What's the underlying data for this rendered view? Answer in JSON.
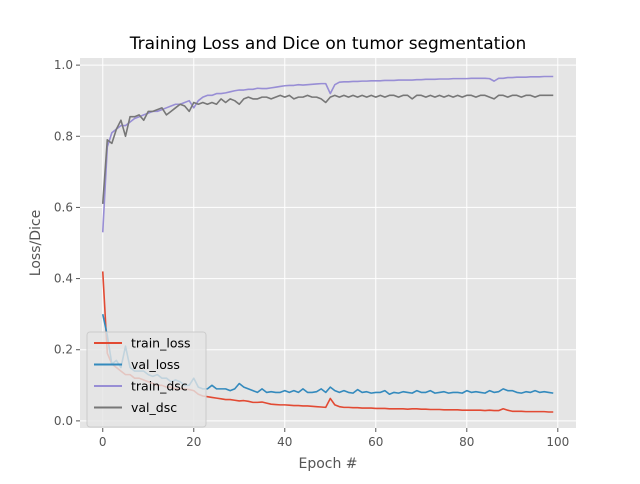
{
  "chart_data": {
    "type": "line",
    "title": "Training Loss and Dice on tumor segmentation",
    "xlabel": "Epoch #",
    "ylabel": "Loss/Dice",
    "xlim": [
      -5,
      104
    ],
    "ylim": [
      -0.02,
      1.02
    ],
    "xticks": [
      0,
      20,
      40,
      60,
      80,
      100
    ],
    "yticks": [
      0.0,
      0.2,
      0.4,
      0.6,
      0.8,
      1.0
    ],
    "xtick_labels": [
      "0",
      "20",
      "40",
      "60",
      "80",
      "100"
    ],
    "ytick_labels": [
      "0.0",
      "0.2",
      "0.4",
      "0.6",
      "0.8",
      "1.0"
    ],
    "grid": true,
    "style": "ggplot",
    "background_color": "#e5e5e5",
    "legend_position": "lower-left",
    "x": [
      0,
      1,
      2,
      3,
      4,
      5,
      6,
      7,
      8,
      9,
      10,
      11,
      12,
      13,
      14,
      15,
      16,
      17,
      18,
      19,
      20,
      21,
      22,
      23,
      24,
      25,
      26,
      27,
      28,
      29,
      30,
      31,
      32,
      33,
      34,
      35,
      36,
      37,
      38,
      39,
      40,
      41,
      42,
      43,
      44,
      45,
      46,
      47,
      48,
      49,
      50,
      51,
      52,
      53,
      54,
      55,
      56,
      57,
      58,
      59,
      60,
      61,
      62,
      63,
      64,
      65,
      66,
      67,
      68,
      69,
      70,
      71,
      72,
      73,
      74,
      75,
      76,
      77,
      78,
      79,
      80,
      81,
      82,
      83,
      84,
      85,
      86,
      87,
      88,
      89,
      90,
      91,
      92,
      93,
      94,
      95,
      96,
      97,
      98,
      99
    ],
    "series": [
      {
        "name": "train_loss",
        "color": "#e24a33",
        "values": [
          0.42,
          0.19,
          0.16,
          0.15,
          0.14,
          0.13,
          0.13,
          0.12,
          0.12,
          0.115,
          0.11,
          0.105,
          0.1,
          0.1,
          0.095,
          0.095,
          0.09,
          0.09,
          0.09,
          0.088,
          0.085,
          0.075,
          0.07,
          0.068,
          0.066,
          0.064,
          0.062,
          0.06,
          0.06,
          0.058,
          0.056,
          0.057,
          0.055,
          0.052,
          0.052,
          0.053,
          0.05,
          0.047,
          0.046,
          0.045,
          0.045,
          0.044,
          0.043,
          0.043,
          0.042,
          0.042,
          0.041,
          0.04,
          0.039,
          0.038,
          0.063,
          0.045,
          0.04,
          0.038,
          0.038,
          0.037,
          0.037,
          0.036,
          0.036,
          0.036,
          0.035,
          0.035,
          0.035,
          0.034,
          0.034,
          0.034,
          0.034,
          0.033,
          0.034,
          0.034,
          0.033,
          0.033,
          0.032,
          0.032,
          0.032,
          0.031,
          0.031,
          0.031,
          0.031,
          0.03,
          0.03,
          0.03,
          0.03,
          0.03,
          0.029,
          0.03,
          0.029,
          0.029,
          0.034,
          0.03,
          0.027,
          0.027,
          0.027,
          0.026,
          0.026,
          0.026,
          0.026,
          0.026,
          0.025,
          0.025
        ]
      },
      {
        "name": "val_loss",
        "color": "#348abd",
        "values": [
          0.3,
          0.24,
          0.16,
          0.17,
          0.15,
          0.21,
          0.15,
          0.14,
          0.14,
          0.14,
          0.13,
          0.125,
          0.13,
          0.12,
          0.12,
          0.11,
          0.115,
          0.11,
          0.1,
          0.1,
          0.12,
          0.095,
          0.09,
          0.09,
          0.1,
          0.09,
          0.09,
          0.09,
          0.085,
          0.09,
          0.105,
          0.095,
          0.09,
          0.085,
          0.08,
          0.09,
          0.08,
          0.082,
          0.08,
          0.08,
          0.085,
          0.08,
          0.085,
          0.08,
          0.09,
          0.08,
          0.08,
          0.082,
          0.09,
          0.08,
          0.095,
          0.085,
          0.08,
          0.085,
          0.08,
          0.078,
          0.088,
          0.08,
          0.082,
          0.078,
          0.08,
          0.08,
          0.085,
          0.075,
          0.08,
          0.078,
          0.082,
          0.08,
          0.078,
          0.085,
          0.08,
          0.08,
          0.085,
          0.078,
          0.08,
          0.082,
          0.078,
          0.08,
          0.08,
          0.078,
          0.085,
          0.08,
          0.082,
          0.08,
          0.078,
          0.085,
          0.08,
          0.082,
          0.09,
          0.085,
          0.085,
          0.08,
          0.078,
          0.082,
          0.08,
          0.085,
          0.08,
          0.082,
          0.08,
          0.078
        ]
      },
      {
        "name": "train_dsc",
        "color": "#988ed5",
        "values": [
          0.53,
          0.77,
          0.81,
          0.82,
          0.83,
          0.83,
          0.84,
          0.85,
          0.855,
          0.86,
          0.865,
          0.87,
          0.87,
          0.875,
          0.88,
          0.885,
          0.89,
          0.89,
          0.895,
          0.9,
          0.88,
          0.9,
          0.91,
          0.915,
          0.915,
          0.92,
          0.92,
          0.922,
          0.925,
          0.928,
          0.93,
          0.93,
          0.932,
          0.932,
          0.935,
          0.934,
          0.934,
          0.936,
          0.938,
          0.94,
          0.942,
          0.943,
          0.943,
          0.945,
          0.944,
          0.945,
          0.946,
          0.947,
          0.948,
          0.948,
          0.92,
          0.945,
          0.952,
          0.953,
          0.953,
          0.954,
          0.954,
          0.955,
          0.955,
          0.956,
          0.956,
          0.956,
          0.957,
          0.957,
          0.957,
          0.958,
          0.958,
          0.958,
          0.958,
          0.959,
          0.959,
          0.96,
          0.96,
          0.96,
          0.961,
          0.961,
          0.961,
          0.962,
          0.962,
          0.962,
          0.962,
          0.963,
          0.963,
          0.963,
          0.963,
          0.962,
          0.955,
          0.963,
          0.963,
          0.965,
          0.965,
          0.966,
          0.966,
          0.966,
          0.967,
          0.967,
          0.967,
          0.968,
          0.968,
          0.968
        ]
      },
      {
        "name": "val_dsc",
        "color": "#777777",
        "values": [
          0.61,
          0.79,
          0.78,
          0.82,
          0.845,
          0.8,
          0.855,
          0.855,
          0.86,
          0.845,
          0.87,
          0.87,
          0.875,
          0.88,
          0.86,
          0.87,
          0.88,
          0.89,
          0.885,
          0.87,
          0.895,
          0.89,
          0.895,
          0.89,
          0.895,
          0.89,
          0.905,
          0.895,
          0.905,
          0.9,
          0.89,
          0.905,
          0.91,
          0.905,
          0.905,
          0.91,
          0.91,
          0.905,
          0.91,
          0.915,
          0.91,
          0.915,
          0.905,
          0.91,
          0.91,
          0.915,
          0.91,
          0.91,
          0.905,
          0.895,
          0.91,
          0.915,
          0.91,
          0.915,
          0.91,
          0.915,
          0.91,
          0.915,
          0.91,
          0.915,
          0.91,
          0.915,
          0.91,
          0.915,
          0.915,
          0.91,
          0.915,
          0.915,
          0.905,
          0.915,
          0.915,
          0.91,
          0.915,
          0.91,
          0.915,
          0.91,
          0.915,
          0.91,
          0.915,
          0.91,
          0.915,
          0.915,
          0.91,
          0.915,
          0.915,
          0.91,
          0.905,
          0.915,
          0.915,
          0.91,
          0.915,
          0.915,
          0.91,
          0.915,
          0.915,
          0.91,
          0.915,
          0.915,
          0.915,
          0.915
        ]
      }
    ]
  }
}
